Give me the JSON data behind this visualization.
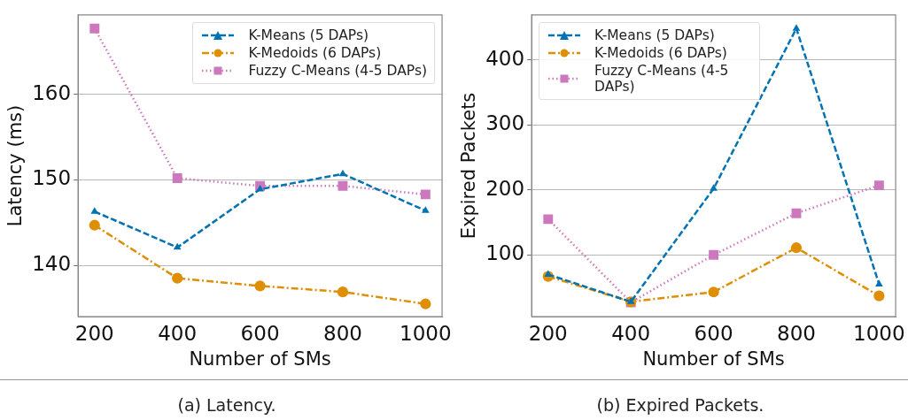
{
  "chart_data": [
    {
      "type": "line",
      "xlabel": "Number of SMs",
      "ylabel": "Latency (ms)",
      "x": [
        200,
        400,
        600,
        800,
        1000
      ],
      "xlim": [
        160,
        1040
      ],
      "xticks": [
        200,
        400,
        600,
        800,
        1000
      ],
      "ylim": [
        134,
        169.3
      ],
      "yticks": [
        140,
        150,
        160
      ],
      "grid": "y",
      "legend": "top right",
      "annotations": [
        "(a) Latency."
      ],
      "series": [
        {
          "name": "K-Means (5 DAPs)",
          "color": "#0173b2",
          "marker": "triangle",
          "line_style": "dashed",
          "values": [
            146.3,
            142.1,
            148.9,
            150.7,
            146.4
          ]
        },
        {
          "name": "K-Medoids (6 DAPs)",
          "color": "#de8f05",
          "marker": "circle",
          "line_style": "dashdot",
          "values": [
            144.7,
            138.5,
            137.6,
            136.9,
            135.5
          ]
        },
        {
          "name": "Fuzzy C-Means (4-5 DAPs)",
          "color": "#cc78bc",
          "marker": "square",
          "line_style": "dotted",
          "values": [
            167.7,
            150.2,
            149.3,
            149.3,
            148.3
          ]
        }
      ]
    },
    {
      "type": "line",
      "xlabel": "Number of SMs",
      "ylabel": "Expired Packets",
      "x": [
        200,
        400,
        600,
        800,
        1000
      ],
      "xlim": [
        160,
        1040
      ],
      "xticks": [
        200,
        400,
        600,
        800,
        1000
      ],
      "ylim": [
        5,
        469
      ],
      "yticks": [
        100,
        200,
        300,
        400
      ],
      "grid": "y",
      "legend": "top left",
      "annotations": [
        "(b) Expired Packets."
      ],
      "series": [
        {
          "name": "K-Means (5 DAPs)",
          "color": "#0173b2",
          "marker": "triangle",
          "line_style": "dashed",
          "values": [
            70,
            28,
            202,
            448,
            55
          ]
        },
        {
          "name": "K-Medoids (6 DAPs)",
          "color": "#de8f05",
          "marker": "circle",
          "line_style": "dashdot",
          "values": [
            67,
            28,
            43,
            111,
            37
          ]
        },
        {
          "name": "Fuzzy C-Means (4-5 DAPs)",
          "color": "#cc78bc",
          "marker": "square",
          "line_style": "dotted",
          "values": [
            155,
            27,
            100,
            164,
            207
          ]
        }
      ]
    }
  ]
}
